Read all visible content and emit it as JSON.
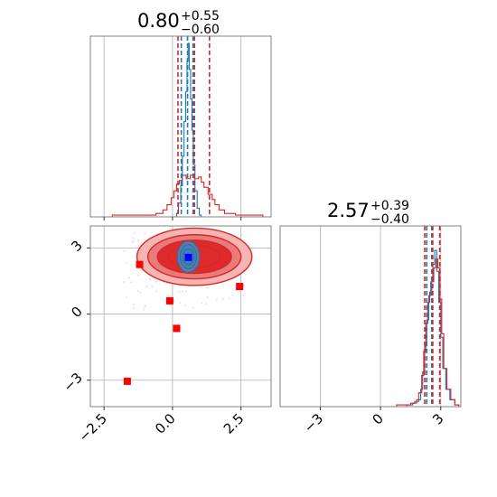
{
  "chart_data": {
    "type": "corner",
    "colors": {
      "truth_a": "#d62728",
      "truth_b": "#1f77b4",
      "marker_red": "#ff0000",
      "marker_blue": "#0000ff",
      "grid": "#b0b0b0",
      "spine": "#808080",
      "fill_light": "#f5b5b5",
      "fill_mid": "#ea7b7b",
      "fill_dark": "#dd2b2b"
    },
    "grid": true,
    "panels": {
      "p1_hist": {
        "title_value": "0.80",
        "title_plus": "+0.55",
        "title_minus": "−0.60",
        "xlim": [
          -3.0,
          3.6
        ],
        "quantiles_red": [
          0.2,
          0.8,
          1.35
        ],
        "quantiles_blue": [
          0.32,
          0.55,
          0.75
        ],
        "red_steps": [
          [
            -2.6,
            0
          ],
          [
            -2.2,
            0.01
          ],
          [
            -1.8,
            0.01
          ],
          [
            -1.3,
            0.01
          ],
          [
            -0.6,
            0.02
          ],
          [
            -0.35,
            0.04
          ],
          [
            -0.2,
            0.07
          ],
          [
            -0.05,
            0.11
          ],
          [
            0.05,
            0.15
          ],
          [
            0.15,
            0.19
          ],
          [
            0.25,
            0.21
          ],
          [
            0.35,
            0.24
          ],
          [
            0.5,
            0.22
          ],
          [
            0.65,
            0.24
          ],
          [
            0.8,
            0.22
          ],
          [
            0.95,
            0.23
          ],
          [
            1.05,
            0.2
          ],
          [
            1.15,
            0.17
          ],
          [
            1.3,
            0.13
          ],
          [
            1.45,
            0.1
          ],
          [
            1.55,
            0.07
          ],
          [
            1.7,
            0.04
          ],
          [
            1.9,
            0.02
          ],
          [
            2.3,
            0.01
          ],
          [
            2.9,
            0.01
          ],
          [
            3.3,
            0
          ]
        ],
        "blue_steps": [
          [
            0.05,
            0
          ],
          [
            0.15,
            0.02
          ],
          [
            0.22,
            0.08
          ],
          [
            0.3,
            0.18
          ],
          [
            0.36,
            0.35
          ],
          [
            0.42,
            0.55
          ],
          [
            0.48,
            0.72
          ],
          [
            0.53,
            0.9
          ],
          [
            0.57,
            1.0
          ],
          [
            0.61,
            0.85
          ],
          [
            0.66,
            0.68
          ],
          [
            0.71,
            0.5
          ],
          [
            0.76,
            0.3
          ],
          [
            0.82,
            0.15
          ],
          [
            0.9,
            0.05
          ],
          [
            0.98,
            0.01
          ],
          [
            1.05,
            0
          ]
        ]
      },
      "p2_scatter": {
        "xlim": [
          -3.0,
          3.6
        ],
        "ylim": [
          -4.2,
          4.0
        ],
        "xticks": [
          "−2.5",
          "0.0",
          "2.5"
        ],
        "xtick_values": [
          -2.5,
          0.0,
          2.5
        ],
        "yticks": [
          "−3",
          "0",
          "3"
        ],
        "ytick_values": [
          -3,
          0,
          3
        ],
        "red_contour_center": [
          0.8,
          2.6
        ],
        "red_contour_levels": [
          [
            2.1,
            1.3
          ],
          [
            1.7,
            1.0
          ],
          [
            1.35,
            0.75
          ],
          [
            0.95,
            0.5
          ]
        ],
        "blue_contour_center": [
          0.58,
          2.6
        ],
        "blue_contour_levels": [
          [
            0.4,
            0.7
          ],
          [
            0.3,
            0.55
          ],
          [
            0.2,
            0.35
          ]
        ],
        "red_markers": [
          [
            -1.2,
            2.25
          ],
          [
            -0.1,
            0.6
          ],
          [
            0.15,
            -0.65
          ],
          [
            2.45,
            1.25
          ],
          [
            -1.65,
            -3.05
          ]
        ],
        "blue_marker": [
          0.58,
          2.57
        ]
      },
      "p3_hist": {
        "title_value": "2.57",
        "title_plus": "+0.39",
        "title_minus": "−0.40",
        "xlim": [
          -5.0,
          4.0
        ],
        "xticks": [
          "−3",
          "0",
          "3"
        ],
        "xtick_values": [
          -3,
          0,
          3
        ],
        "quantiles_red": [
          2.2,
          2.6,
          2.95
        ],
        "quantiles_blue": [
          2.3,
          2.55,
          2.95
        ],
        "red_steps": [
          [
            0.5,
            0
          ],
          [
            0.8,
            0.01
          ],
          [
            1.2,
            0.01
          ],
          [
            1.5,
            0.02
          ],
          [
            1.7,
            0.03
          ],
          [
            1.9,
            0.08
          ],
          [
            2.05,
            0.18
          ],
          [
            2.15,
            0.32
          ],
          [
            2.25,
            0.48
          ],
          [
            2.35,
            0.6
          ],
          [
            2.45,
            0.66
          ],
          [
            2.55,
            0.72
          ],
          [
            2.65,
            0.8
          ],
          [
            2.75,
            0.85
          ],
          [
            2.85,
            0.8
          ],
          [
            2.95,
            0.62
          ],
          [
            3.05,
            0.42
          ],
          [
            3.15,
            0.22
          ],
          [
            3.3,
            0.1
          ],
          [
            3.5,
            0.04
          ],
          [
            3.7,
            0.01
          ],
          [
            3.9,
            0
          ]
        ],
        "blue_steps": [
          [
            0.8,
            0
          ],
          [
            1.3,
            0.01
          ],
          [
            1.6,
            0.02
          ],
          [
            1.8,
            0.04
          ],
          [
            2.0,
            0.1
          ],
          [
            2.1,
            0.2
          ],
          [
            2.2,
            0.35
          ],
          [
            2.3,
            0.5
          ],
          [
            2.4,
            0.64
          ],
          [
            2.5,
            0.72
          ],
          [
            2.6,
            0.82
          ],
          [
            2.7,
            0.9
          ],
          [
            2.8,
            0.78
          ],
          [
            2.9,
            0.6
          ],
          [
            3.0,
            0.4
          ],
          [
            3.1,
            0.22
          ],
          [
            3.25,
            0.1
          ],
          [
            3.45,
            0.04
          ],
          [
            3.7,
            0.01
          ],
          [
            3.9,
            0
          ]
        ]
      }
    }
  }
}
